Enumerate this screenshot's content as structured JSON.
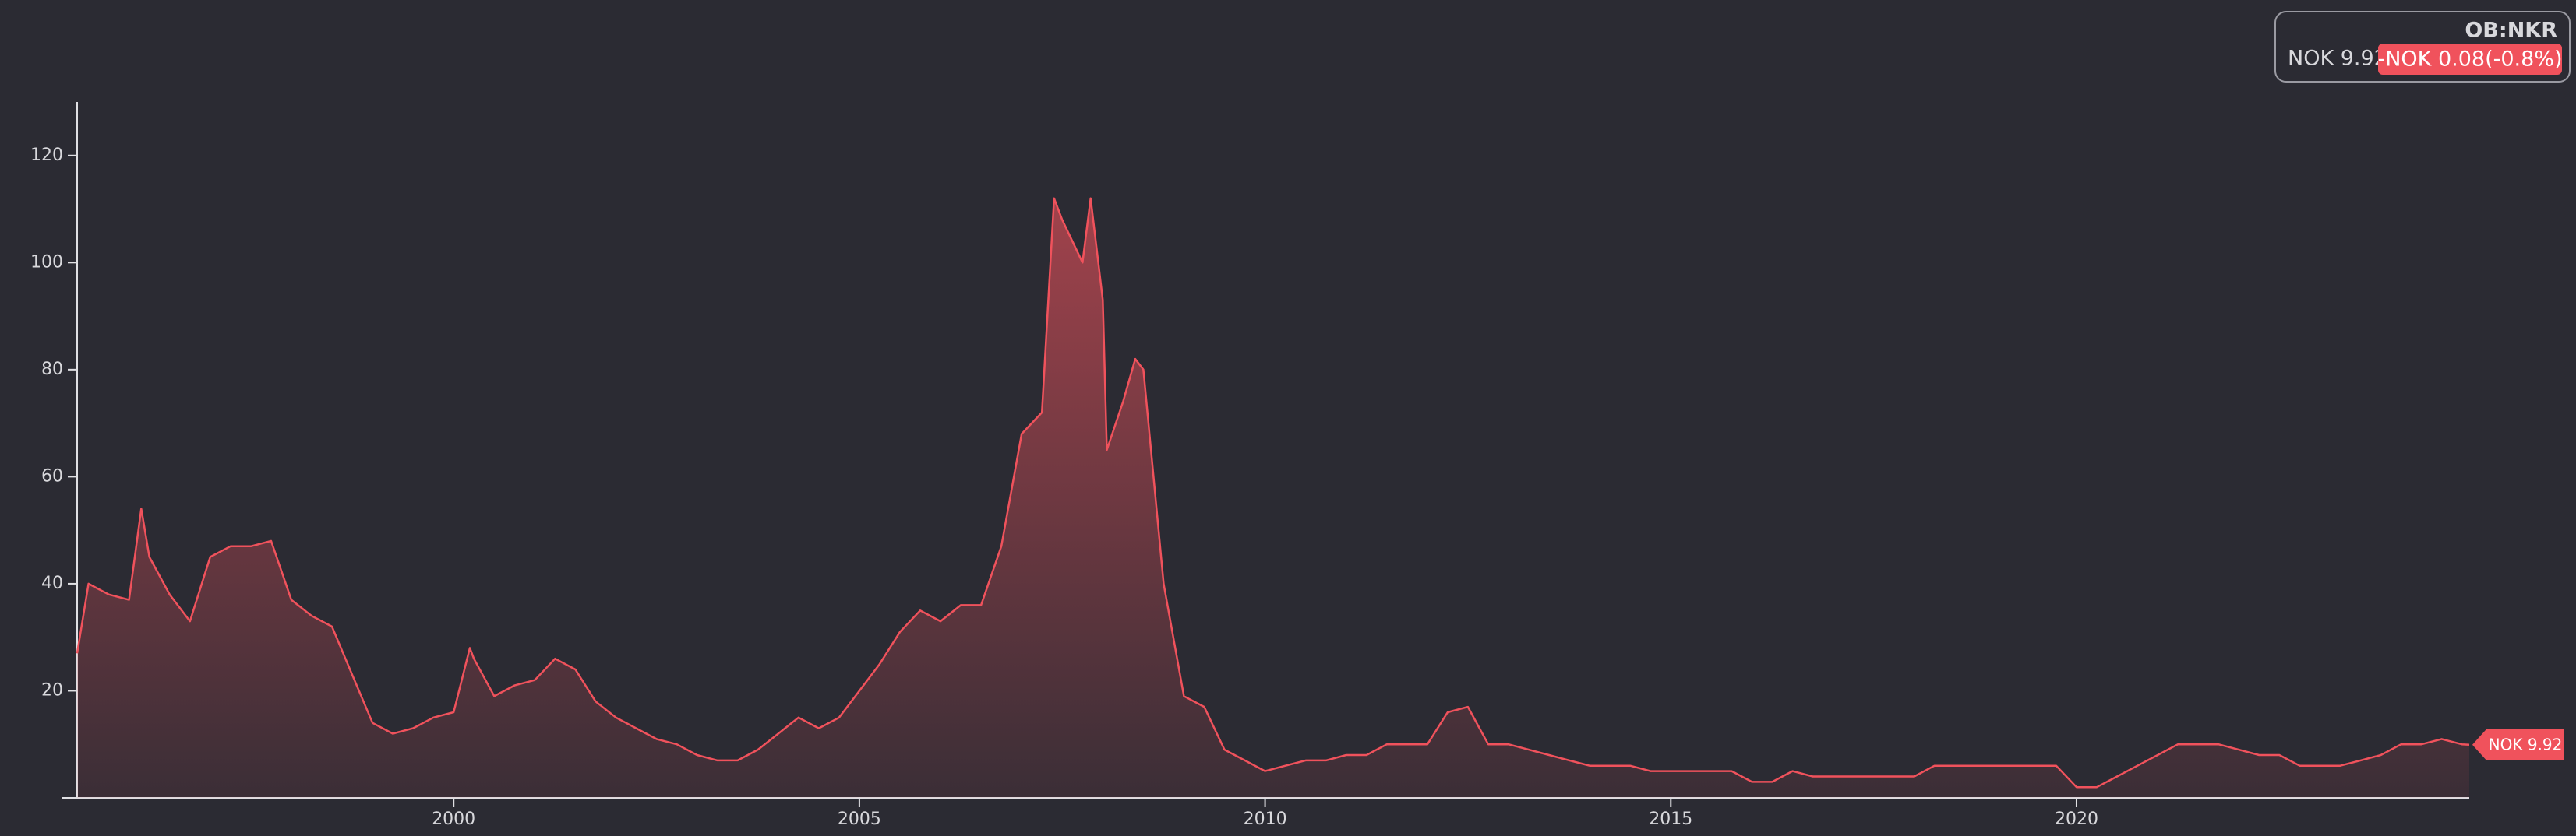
{
  "header": {
    "symbol": "OB:NKR",
    "price": "NOK 9.92",
    "change": "-NOK 0.08(-0.8%)"
  },
  "chart_data": {
    "type": "area",
    "color": "#f0525c",
    "x": [
      1995.36,
      1995.5,
      1995.75,
      1996.0,
      1996.15,
      1996.25,
      1996.5,
      1996.75,
      1997.0,
      1997.25,
      1997.5,
      1997.75,
      1998.0,
      1998.25,
      1998.5,
      1998.75,
      1999.0,
      1999.25,
      1999.5,
      1999.75,
      2000.0,
      2000.2,
      2000.25,
      2000.5,
      2000.75,
      2001.0,
      2001.25,
      2001.5,
      2001.75,
      2002.0,
      2002.25,
      2002.5,
      2002.75,
      2003.0,
      2003.25,
      2003.5,
      2003.75,
      2004.0,
      2004.25,
      2004.5,
      2004.75,
      2005.0,
      2005.25,
      2005.5,
      2005.75,
      2006.0,
      2006.25,
      2006.5,
      2006.75,
      2007.0,
      2007.25,
      2007.4,
      2007.5,
      2007.75,
      2007.85,
      2008.0,
      2008.05,
      2008.25,
      2008.4,
      2008.5,
      2008.75,
      2009.0,
      2009.25,
      2009.5,
      2009.75,
      2010.0,
      2010.25,
      2010.5,
      2010.75,
      2011.0,
      2011.25,
      2011.5,
      2011.75,
      2012.0,
      2012.25,
      2012.5,
      2012.75,
      2013.0,
      2013.25,
      2013.5,
      2013.75,
      2014.0,
      2014.25,
      2014.5,
      2014.75,
      2015.0,
      2015.25,
      2015.5,
      2015.75,
      2016.0,
      2016.25,
      2016.5,
      2016.75,
      2017.0,
      2017.25,
      2017.5,
      2017.75,
      2018.0,
      2018.25,
      2018.5,
      2018.75,
      2019.0,
      2019.25,
      2019.5,
      2019.75,
      2020.0,
      2020.25,
      2020.5,
      2020.75,
      2021.0,
      2021.25,
      2021.5,
      2021.75,
      2022.0,
      2022.25,
      2022.5,
      2022.75,
      2023.0,
      2023.25,
      2023.5,
      2023.75,
      2024.0,
      2024.25,
      2024.5,
      2024.75,
      2024.84
    ],
    "values": [
      27,
      40,
      38,
      37,
      54,
      45,
      38,
      33,
      45,
      47,
      47,
      48,
      37,
      34,
      32,
      23,
      14,
      12,
      13,
      15,
      16,
      28,
      26,
      19,
      21,
      22,
      26,
      24,
      18,
      15,
      13,
      11,
      10,
      8,
      7,
      7,
      9,
      12,
      15,
      13,
      15,
      20,
      25,
      31,
      35,
      33,
      36,
      36,
      47,
      68,
      72,
      112,
      108,
      100,
      112,
      93,
      65,
      74,
      82,
      80,
      40,
      19,
      17,
      9,
      7,
      5,
      6,
      7,
      7,
      8,
      8,
      10,
      10,
      10,
      16,
      17,
      10,
      10,
      9,
      8,
      7,
      6,
      6,
      6,
      5,
      5,
      5,
      5,
      5,
      3,
      3,
      5,
      4,
      4,
      4,
      4,
      4,
      4,
      6,
      6,
      6,
      6,
      6,
      6,
      6,
      2,
      2,
      4,
      6,
      8,
      10,
      10,
      10,
      9,
      8,
      8,
      6,
      6,
      6,
      7,
      8,
      10,
      10,
      11,
      10,
      9.92
    ],
    "xlim": [
      1995.36,
      2024.84
    ],
    "xticks": [
      2000,
      2005,
      2010,
      2015,
      2020
    ],
    "ylim": [
      0,
      130
    ],
    "yticks": [
      20,
      40,
      60,
      80,
      100,
      120
    ]
  }
}
